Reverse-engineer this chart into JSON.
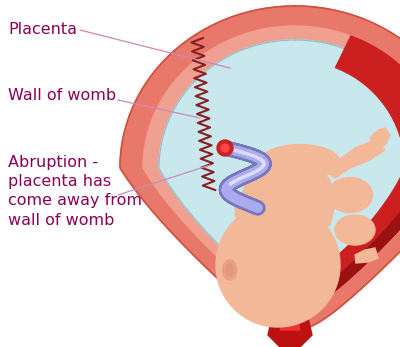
{
  "background_color": "#ffffff",
  "label_color": "#8B0057",
  "label_line_color": "#CC88BB",
  "labels": {
    "placenta": "Placenta",
    "wall": "Wall of womb",
    "abruption": "Abruption -\nplacenta has\ncome away from\nwall of womb"
  },
  "womb_outer_color": "#E8796A",
  "womb_wall_color": "#F0A090",
  "amniotic_color": "#C8E8EE",
  "placenta_color": "#CC2020",
  "blood_color": "#BB1111",
  "fetus_skin_color": "#F2B898",
  "fetus_shadow_color": "#E8A080",
  "cord_fill_color": "#AAAAEE",
  "cord_outline_color": "#7777BB",
  "cord_highlight_color": "#DDDDFF",
  "figsize": [
    4.0,
    3.47
  ],
  "dpi": 100
}
